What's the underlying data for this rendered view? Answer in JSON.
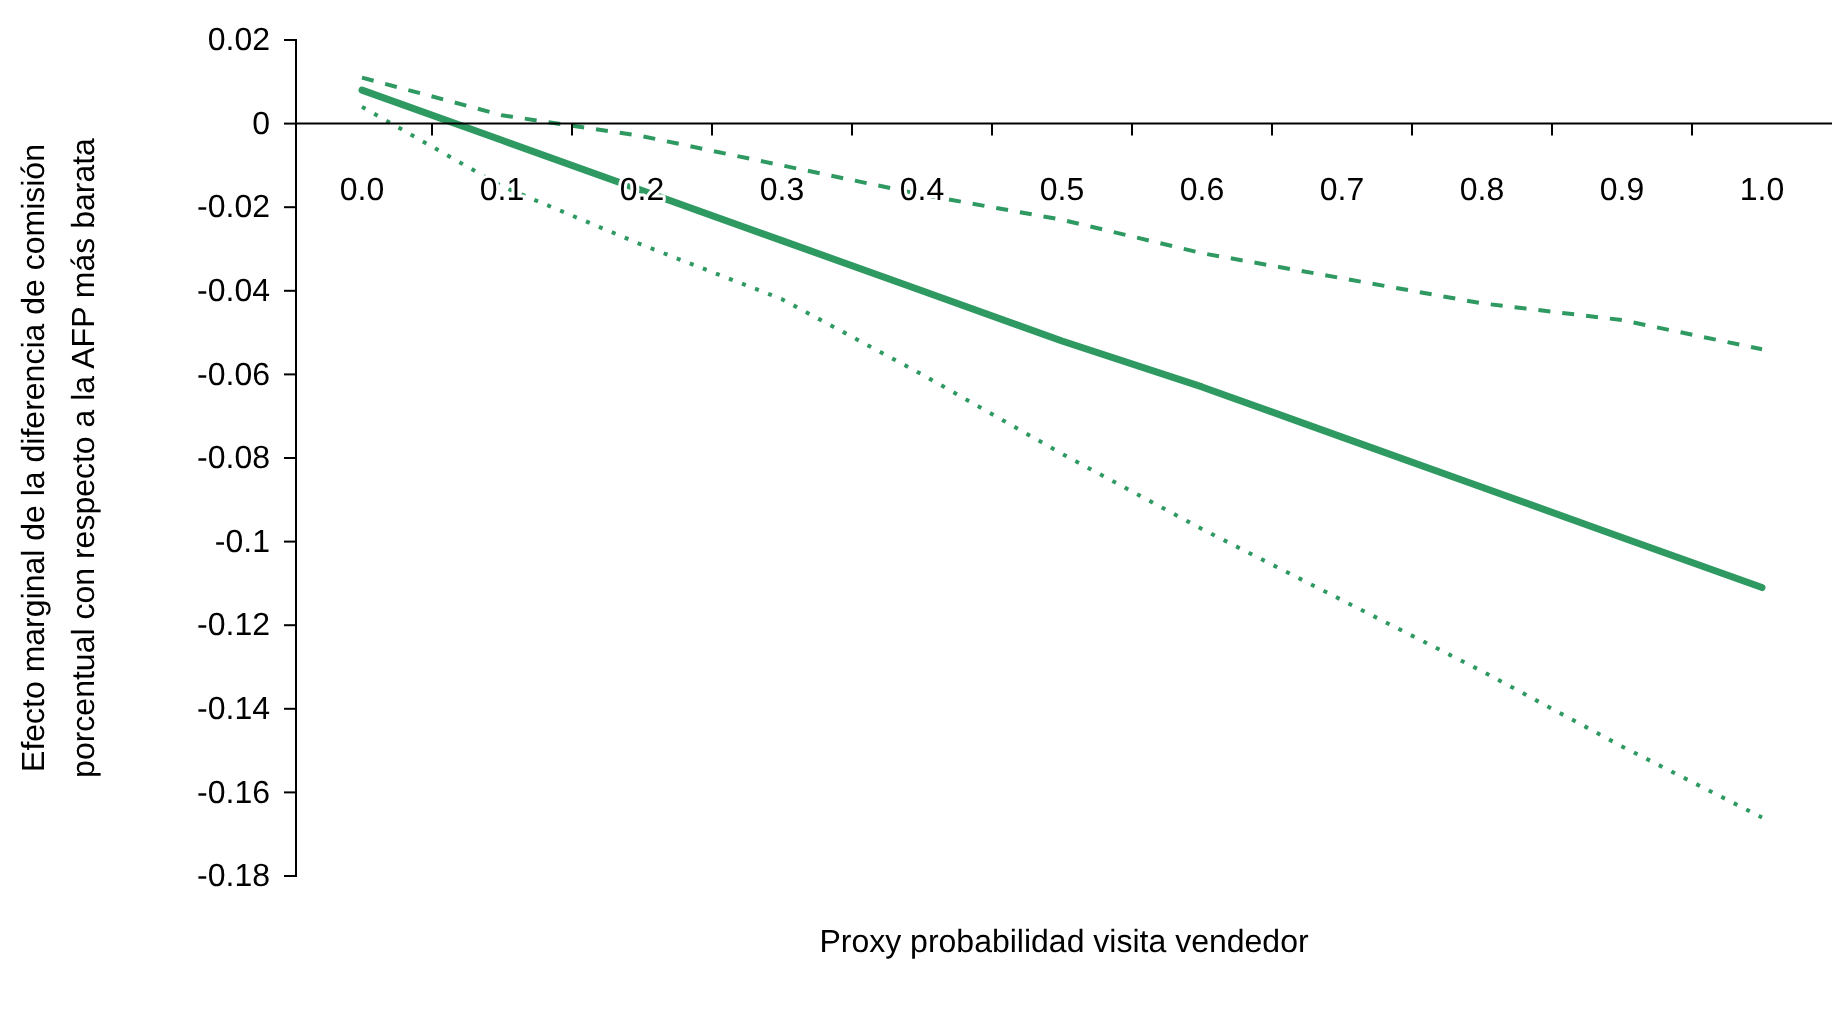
{
  "chart_data": {
    "type": "line",
    "xlabel": "Proxy probabilidad visita vendedor",
    "ylabel": "Efecto marginal de la diferencia de comisión\nporcentual con respecto a la AFP más barata",
    "categories": [
      "0.0",
      "0.1",
      "0.2",
      "0.3",
      "0.4",
      "0.5",
      "0.6",
      "0.7",
      "0.8",
      "0.9",
      "1.0"
    ],
    "series": [
      {
        "color": "#2e9960",
        "line_style": "solid",
        "values": [
          0.008,
          -0.004,
          -0.016,
          -0.028,
          -0.04,
          -0.052,
          -0.063,
          -0.075,
          -0.087,
          -0.099,
          -0.111
        ]
      },
      {
        "color": "#2e9960",
        "line_style": "dashed",
        "values": [
          0.011,
          0.002,
          -0.003,
          -0.01,
          -0.017,
          -0.023,
          -0.031,
          -0.037,
          -0.043,
          -0.047,
          -0.054
        ]
      },
      {
        "color": "#2e9960",
        "line_style": "dotted",
        "values": [
          0.004,
          -0.015,
          -0.029,
          -0.042,
          -0.06,
          -0.079,
          -0.097,
          -0.114,
          -0.131,
          -0.149,
          -0.166
        ]
      }
    ],
    "ylim": [
      -0.18,
      0.02
    ],
    "yticks": [
      0.02,
      0,
      -0.02,
      -0.04,
      -0.06,
      -0.08,
      -0.1,
      -0.12,
      -0.14,
      -0.16,
      -0.18
    ],
    "grid": false,
    "marker": "none"
  }
}
